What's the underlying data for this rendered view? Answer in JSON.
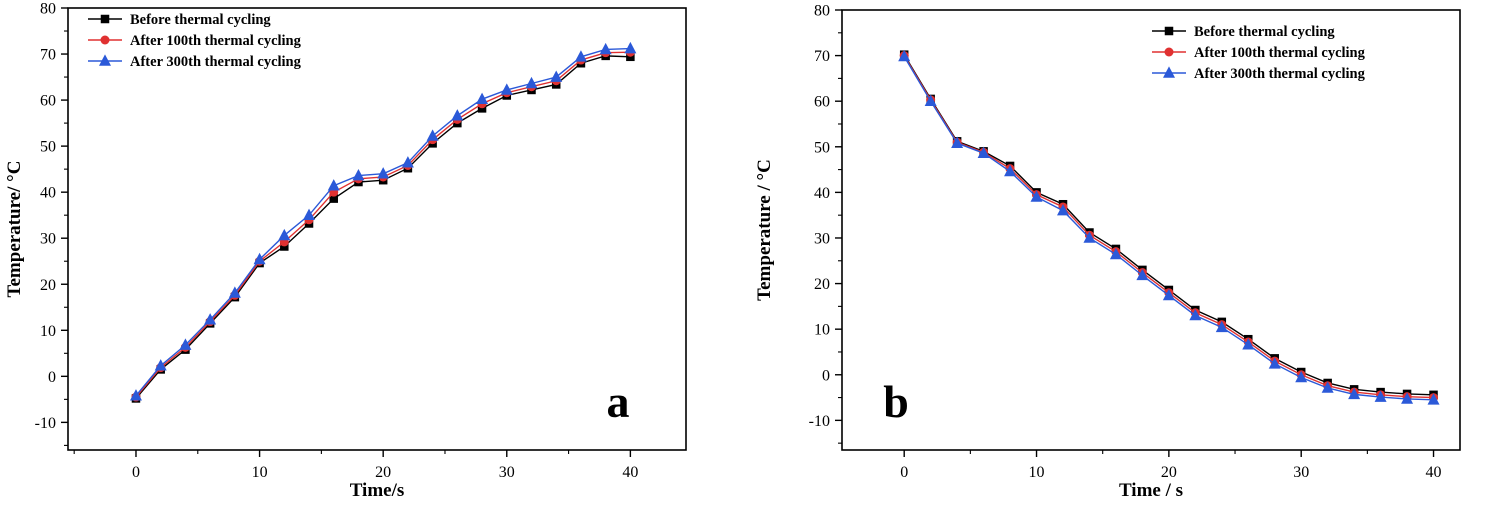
{
  "figure": {
    "background": "#ffffff",
    "axis_color": "#000000"
  },
  "chart_data": [
    {
      "id": "a",
      "type": "line",
      "title": "",
      "panel_label": "a",
      "panel_label_corner": "bottom-right",
      "xlabel": "Time/s",
      "ylabel": "Temperature/ °C",
      "xlim": [
        -5.5,
        44.5
      ],
      "ylim": [
        -16,
        80
      ],
      "xticks": [
        0,
        10,
        20,
        30,
        40
      ],
      "yticks": [
        -10,
        0,
        10,
        20,
        30,
        40,
        50,
        60,
        70,
        80
      ],
      "grid": false,
      "legend_position": "top-left",
      "x": [
        0,
        2,
        4,
        6,
        8,
        10,
        12,
        14,
        16,
        18,
        20,
        22,
        24,
        26,
        28,
        30,
        32,
        34,
        36,
        38,
        40
      ],
      "series": [
        {
          "name": "Before thermal cycling",
          "color": "#000000",
          "marker": "square",
          "values": [
            -4.8,
            1.5,
            5.8,
            11.5,
            17.2,
            24.6,
            28.2,
            33.2,
            38.6,
            42.2,
            42.6,
            45.2,
            50.6,
            55.0,
            58.2,
            61.0,
            62.2,
            63.4,
            68.0,
            69.6,
            69.4
          ]
        },
        {
          "name": "After 100th thermal cycling",
          "color": "#e03131",
          "marker": "circle",
          "values": [
            -4.5,
            1.9,
            6.3,
            11.9,
            17.6,
            25.0,
            29.2,
            34.0,
            40.0,
            42.9,
            43.3,
            45.8,
            51.4,
            55.8,
            59.2,
            61.6,
            62.9,
            64.2,
            68.7,
            70.3,
            70.4
          ]
        },
        {
          "name": "After 300th thermal cycling",
          "color": "#2b59d8",
          "marker": "triangle",
          "values": [
            -4.2,
            2.3,
            6.8,
            12.3,
            18.1,
            25.4,
            30.6,
            35.0,
            41.4,
            43.6,
            44.0,
            46.4,
            52.2,
            56.6,
            60.2,
            62.2,
            63.6,
            65.0,
            69.4,
            71.0,
            71.2
          ]
        }
      ]
    },
    {
      "id": "b",
      "type": "line",
      "title": "",
      "panel_label": "b",
      "panel_label_corner": "bottom-left",
      "xlabel": "Time / s",
      "ylabel": "Temperature / °C",
      "xlim": [
        -4.7,
        42
      ],
      "ylim": [
        -16.5,
        80
      ],
      "xticks": [
        0,
        10,
        20,
        30,
        40
      ],
      "yticks": [
        -10,
        0,
        10,
        20,
        30,
        40,
        50,
        60,
        70,
        80
      ],
      "grid": false,
      "legend_position": "top-right",
      "x": [
        0,
        2,
        4,
        6,
        8,
        10,
        12,
        14,
        16,
        18,
        20,
        22,
        24,
        26,
        28,
        30,
        32,
        34,
        36,
        38,
        40
      ],
      "series": [
        {
          "name": "Before thermal cycling",
          "color": "#000000",
          "marker": "square",
          "values": [
            70.2,
            60.5,
            51.2,
            49.0,
            45.8,
            40.0,
            37.4,
            31.2,
            27.6,
            23.0,
            18.6,
            14.2,
            11.6,
            7.8,
            3.6,
            0.6,
            -1.8,
            -3.2,
            -3.8,
            -4.2,
            -4.4
          ]
        },
        {
          "name": "After 100th thermal cycling",
          "color": "#e03131",
          "marker": "circle",
          "values": [
            70.0,
            60.3,
            51.0,
            48.8,
            45.2,
            39.5,
            36.8,
            30.6,
            27.0,
            22.4,
            18.0,
            13.6,
            11.0,
            7.2,
            3.0,
            0.0,
            -2.4,
            -3.8,
            -4.4,
            -4.8,
            -5.0
          ]
        },
        {
          "name": "After 300th thermal cycling",
          "color": "#2b59d8",
          "marker": "triangle",
          "values": [
            69.8,
            60.0,
            50.8,
            48.6,
            44.6,
            39.0,
            36.0,
            30.0,
            26.4,
            21.8,
            17.4,
            13.0,
            10.4,
            6.6,
            2.4,
            -0.6,
            -2.9,
            -4.3,
            -4.9,
            -5.3,
            -5.5
          ]
        }
      ]
    }
  ]
}
